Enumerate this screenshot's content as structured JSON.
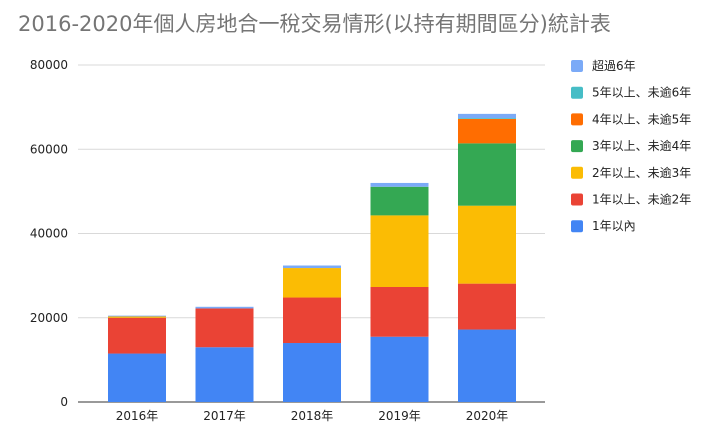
{
  "chart_data": {
    "type": "bar",
    "stacked": true,
    "title": "2016-2020年個人房地合一稅交易情形(以持有期間區分)統計表",
    "xlabel": "",
    "ylabel": "",
    "ylim": [
      0,
      80000
    ],
    "yticks": [
      "0",
      "20000",
      "40000",
      "60000",
      "80000"
    ],
    "grid": true,
    "legend_position": "right",
    "categories": [
      "2016年",
      "2017年",
      "2018年",
      "2019年",
      "2020年"
    ],
    "series": [
      {
        "name": "1年以內",
        "color": "#4285f4",
        "values": [
          11500,
          13000,
          14000,
          15500,
          17200
        ]
      },
      {
        "name": "1年以上、未逾2年",
        "color": "#ea4335",
        "values": [
          8500,
          9200,
          10800,
          11800,
          10900
        ]
      },
      {
        "name": "2年以上、未逾3年",
        "color": "#fbbc04",
        "values": [
          300,
          0,
          7000,
          17000,
          18500
        ]
      },
      {
        "name": "3年以上、未逾4年",
        "color": "#34a853",
        "values": [
          0,
          0,
          0,
          6800,
          14800
        ]
      },
      {
        "name": "4年以上、未逾5年",
        "color": "#ff6d01",
        "values": [
          0,
          0,
          0,
          0,
          5800
        ]
      },
      {
        "name": "5年以上、未逾6年",
        "color": "#46bdc6",
        "values": [
          0,
          0,
          0,
          0,
          200
        ]
      },
      {
        "name": "超過6年",
        "color": "#7baaf7",
        "values": [
          200,
          400,
          600,
          900,
          1000
        ]
      }
    ],
    "legend_order": [
      6,
      5,
      4,
      3,
      2,
      1,
      0
    ]
  }
}
